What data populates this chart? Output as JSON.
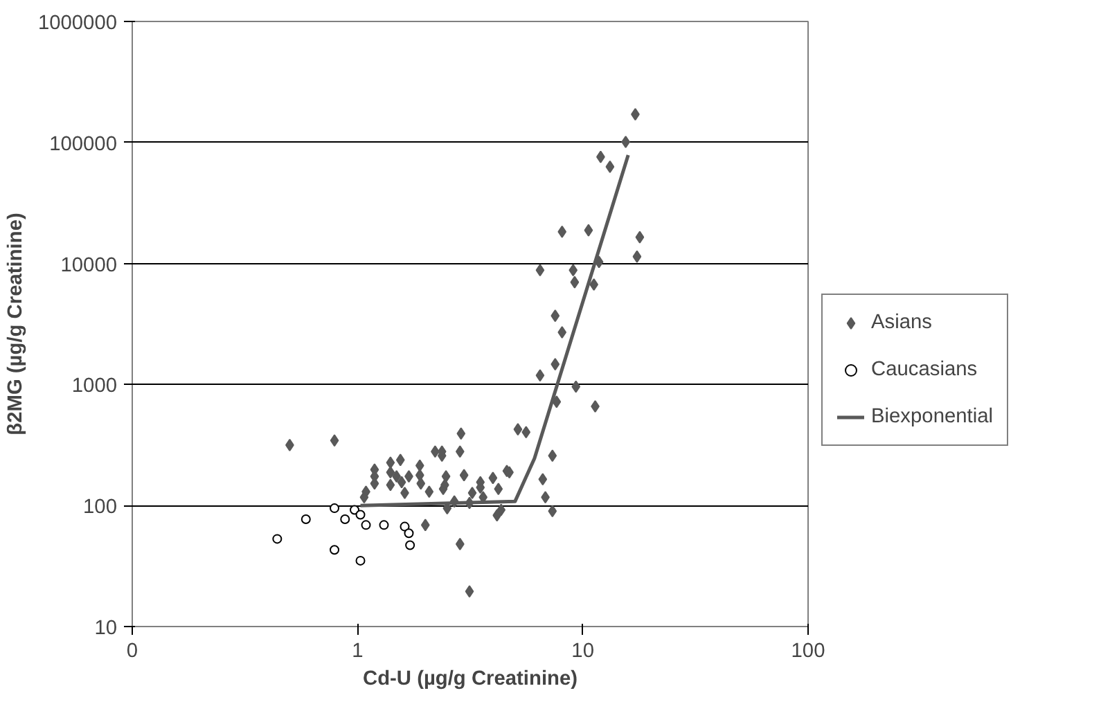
{
  "chart_data": {
    "type": "scatter",
    "xlabel": "Cd-U (µg/g Creatinine)",
    "ylabel": "β2MG (µg/g Creatinine)",
    "log": "xy",
    "grid": "y",
    "legend": "right",
    "xlim": [
      0.1,
      100
    ],
    "xticks": [
      {
        "value": 0.1,
        "label": "0"
      },
      1,
      10,
      100
    ],
    "ylim": [
      10,
      1000000
    ],
    "yticks": [
      10,
      100,
      1000,
      10000,
      100000,
      1000000
    ],
    "series": [
      {
        "name": "Asians",
        "color": "#595959",
        "marker": "diamond",
        "x": [
          0.5,
          0.79,
          1.09,
          1.07,
          1.19,
          1.19,
          1.19,
          1.4,
          1.4,
          1.4,
          1.55,
          1.49,
          1.57,
          1.62,
          1.69,
          1.89,
          1.89,
          1.91,
          2.08,
          2.21,
          2.37,
          2.37,
          2.47,
          2.4,
          2.44,
          2.88,
          2.85,
          2.97,
          2.69,
          2.5,
          2.0,
          2.85,
          3.14,
          3.14,
          3.23,
          3.51,
          3.51,
          3.61,
          3.99,
          4.22,
          4.6,
          4.72,
          4.34,
          4.16,
          5.15,
          5.6,
          7.33,
          6.64,
          6.82,
          7.33,
          17.1,
          15.5,
          12.0,
          13.2,
          8.09,
          10.6,
          17.9,
          17.4,
          11.8,
          6.46,
          9.06,
          9.2,
          11.2,
          7.54,
          8.09,
          7.54,
          6.46,
          9.32,
          7.65,
          11.35
        ],
        "values": [
          316,
          345,
          130,
          117,
          198,
          174,
          152,
          226,
          188,
          148,
          238,
          174,
          156,
          127,
          174,
          214,
          178,
          152,
          130,
          279,
          258,
          279,
          174,
          137,
          148,
          393,
          279,
          178,
          108,
          95,
          69,
          48,
          19.5,
          105,
          127,
          156,
          141,
          117,
          169,
          137,
          193,
          188,
          92,
          83,
          426,
          404,
          258,
          165,
          117,
          90,
          171000,
          101000,
          76000,
          63000,
          18300,
          18800,
          16500,
          11400,
          10300,
          8800,
          8800,
          7000,
          6700,
          3700,
          2700,
          1470,
          1190,
          960,
          720,
          660
        ]
      },
      {
        "name": "Caucasians",
        "color": "#000000",
        "marker": "circle",
        "x": [
          0.44,
          0.59,
          0.79,
          0.79,
          0.88,
          0.97,
          1.03,
          1.03,
          1.09,
          1.31,
          1.62,
          1.69,
          1.71
        ],
        "values": [
          53,
          77,
          95,
          43,
          77,
          92,
          84,
          35,
          69,
          69,
          67,
          59,
          47
        ]
      },
      {
        "name": "Biexponential",
        "type": "line",
        "color": "#595959",
        "marker": "none",
        "x": [
          1.03,
          5.0,
          6.1,
          15.9
        ],
        "values": [
          100,
          108,
          245,
          78700
        ]
      }
    ]
  }
}
